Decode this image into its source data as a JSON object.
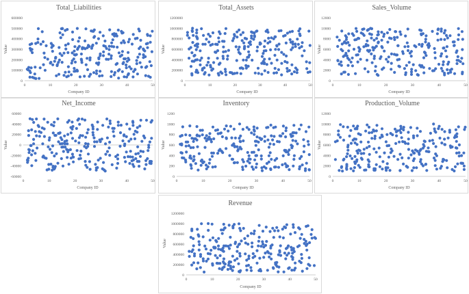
{
  "dot_color": "#4472C4",
  "charts": [
    {
      "key": "liab",
      "chart_data": {
        "type": "scatter",
        "title": "Total_Liabilities",
        "xlabel": "Company ID",
        "ylabel": "Value",
        "xlim": [
          0,
          50
        ],
        "ylim": [
          0,
          600000
        ],
        "xticks": [
          "0",
          "10",
          "20",
          "30",
          "40",
          "50"
        ],
        "yticks": [
          "0",
          "100000",
          "200000",
          "300000",
          "400000",
          "500000",
          "600000"
        ],
        "point_count": 250,
        "ymin": 20000,
        "ymax": 500000,
        "seed": 11
      }
    },
    {
      "key": "assets",
      "chart_data": {
        "type": "scatter",
        "title": "Total_Assets",
        "xlabel": "Company ID",
        "ylabel": "Value",
        "xlim": [
          0,
          50
        ],
        "ylim": [
          0,
          1200000
        ],
        "xticks": [
          "0",
          "10",
          "20",
          "30",
          "40",
          "50"
        ],
        "yticks": [
          "0",
          "200000",
          "400000",
          "600000",
          "800000",
          "1000000",
          "1200000"
        ],
        "point_count": 250,
        "ymin": 100000,
        "ymax": 1000000,
        "seed": 23
      }
    },
    {
      "key": "sales",
      "chart_data": {
        "type": "scatter",
        "title": "Sales_Volume",
        "xlabel": "Company ID",
        "ylabel": "Value",
        "xlim": [
          0,
          50
        ],
        "ylim": [
          0,
          12000
        ],
        "xticks": [
          "0",
          "10",
          "20",
          "30",
          "40",
          "50"
        ],
        "yticks": [
          "0",
          "2000",
          "4000",
          "6000",
          "8000",
          "10000",
          "12000"
        ],
        "point_count": 250,
        "ymin": 1000,
        "ymax": 10000,
        "seed": 37
      }
    },
    {
      "key": "netinc",
      "chart_data": {
        "type": "scatter",
        "title": "Net_Income",
        "xlabel": "Company ID",
        "ylabel": "Value",
        "xlim": [
          0,
          50
        ],
        "ylim": [
          -60000,
          60000
        ],
        "xticks": [
          "0",
          "10",
          "20",
          "30",
          "40",
          "50"
        ],
        "yticks": [
          "-60000",
          "-40000",
          "-20000",
          "0",
          "20000",
          "40000",
          "60000"
        ],
        "point_count": 250,
        "ymin": -50000,
        "ymax": 50000,
        "seed": 41
      }
    },
    {
      "key": "inv",
      "chart_data": {
        "type": "scatter",
        "title": "Inventory",
        "xlabel": "Company ID",
        "ylabel": "Value",
        "xlim": [
          0,
          50
        ],
        "ylim": [
          0,
          1200
        ],
        "xticks": [
          "0",
          "10",
          "20",
          "30",
          "40",
          "50"
        ],
        "yticks": [
          "0",
          "200",
          "400",
          "600",
          "800",
          "1000",
          "1200"
        ],
        "point_count": 250,
        "ymin": 100,
        "ymax": 1000,
        "seed": 53
      }
    },
    {
      "key": "prod",
      "chart_data": {
        "type": "scatter",
        "title": "Production_Volume",
        "xlabel": "Company ID",
        "ylabel": "Value",
        "xlim": [
          0,
          50
        ],
        "ylim": [
          0,
          12000
        ],
        "xticks": [
          "0",
          "10",
          "20",
          "30",
          "40",
          "50"
        ],
        "yticks": [
          "0",
          "2000",
          "4000",
          "6000",
          "8000",
          "10000",
          "12000"
        ],
        "point_count": 250,
        "ymin": 1000,
        "ymax": 10000,
        "seed": 67
      }
    },
    {
      "key": "rev",
      "chart_data": {
        "type": "scatter",
        "title": "Revenue",
        "xlabel": "Company ID",
        "ylabel": "Value",
        "xlim": [
          0,
          50
        ],
        "ylim": [
          0,
          1200000
        ],
        "xticks": [
          "0",
          "10",
          "20",
          "30",
          "40",
          "50"
        ],
        "yticks": [
          "0",
          "200000",
          "400000",
          "600000",
          "800000",
          "1000000",
          "1200000"
        ],
        "point_count": 250,
        "ymin": 50000,
        "ymax": 1000000,
        "seed": 79
      }
    }
  ]
}
